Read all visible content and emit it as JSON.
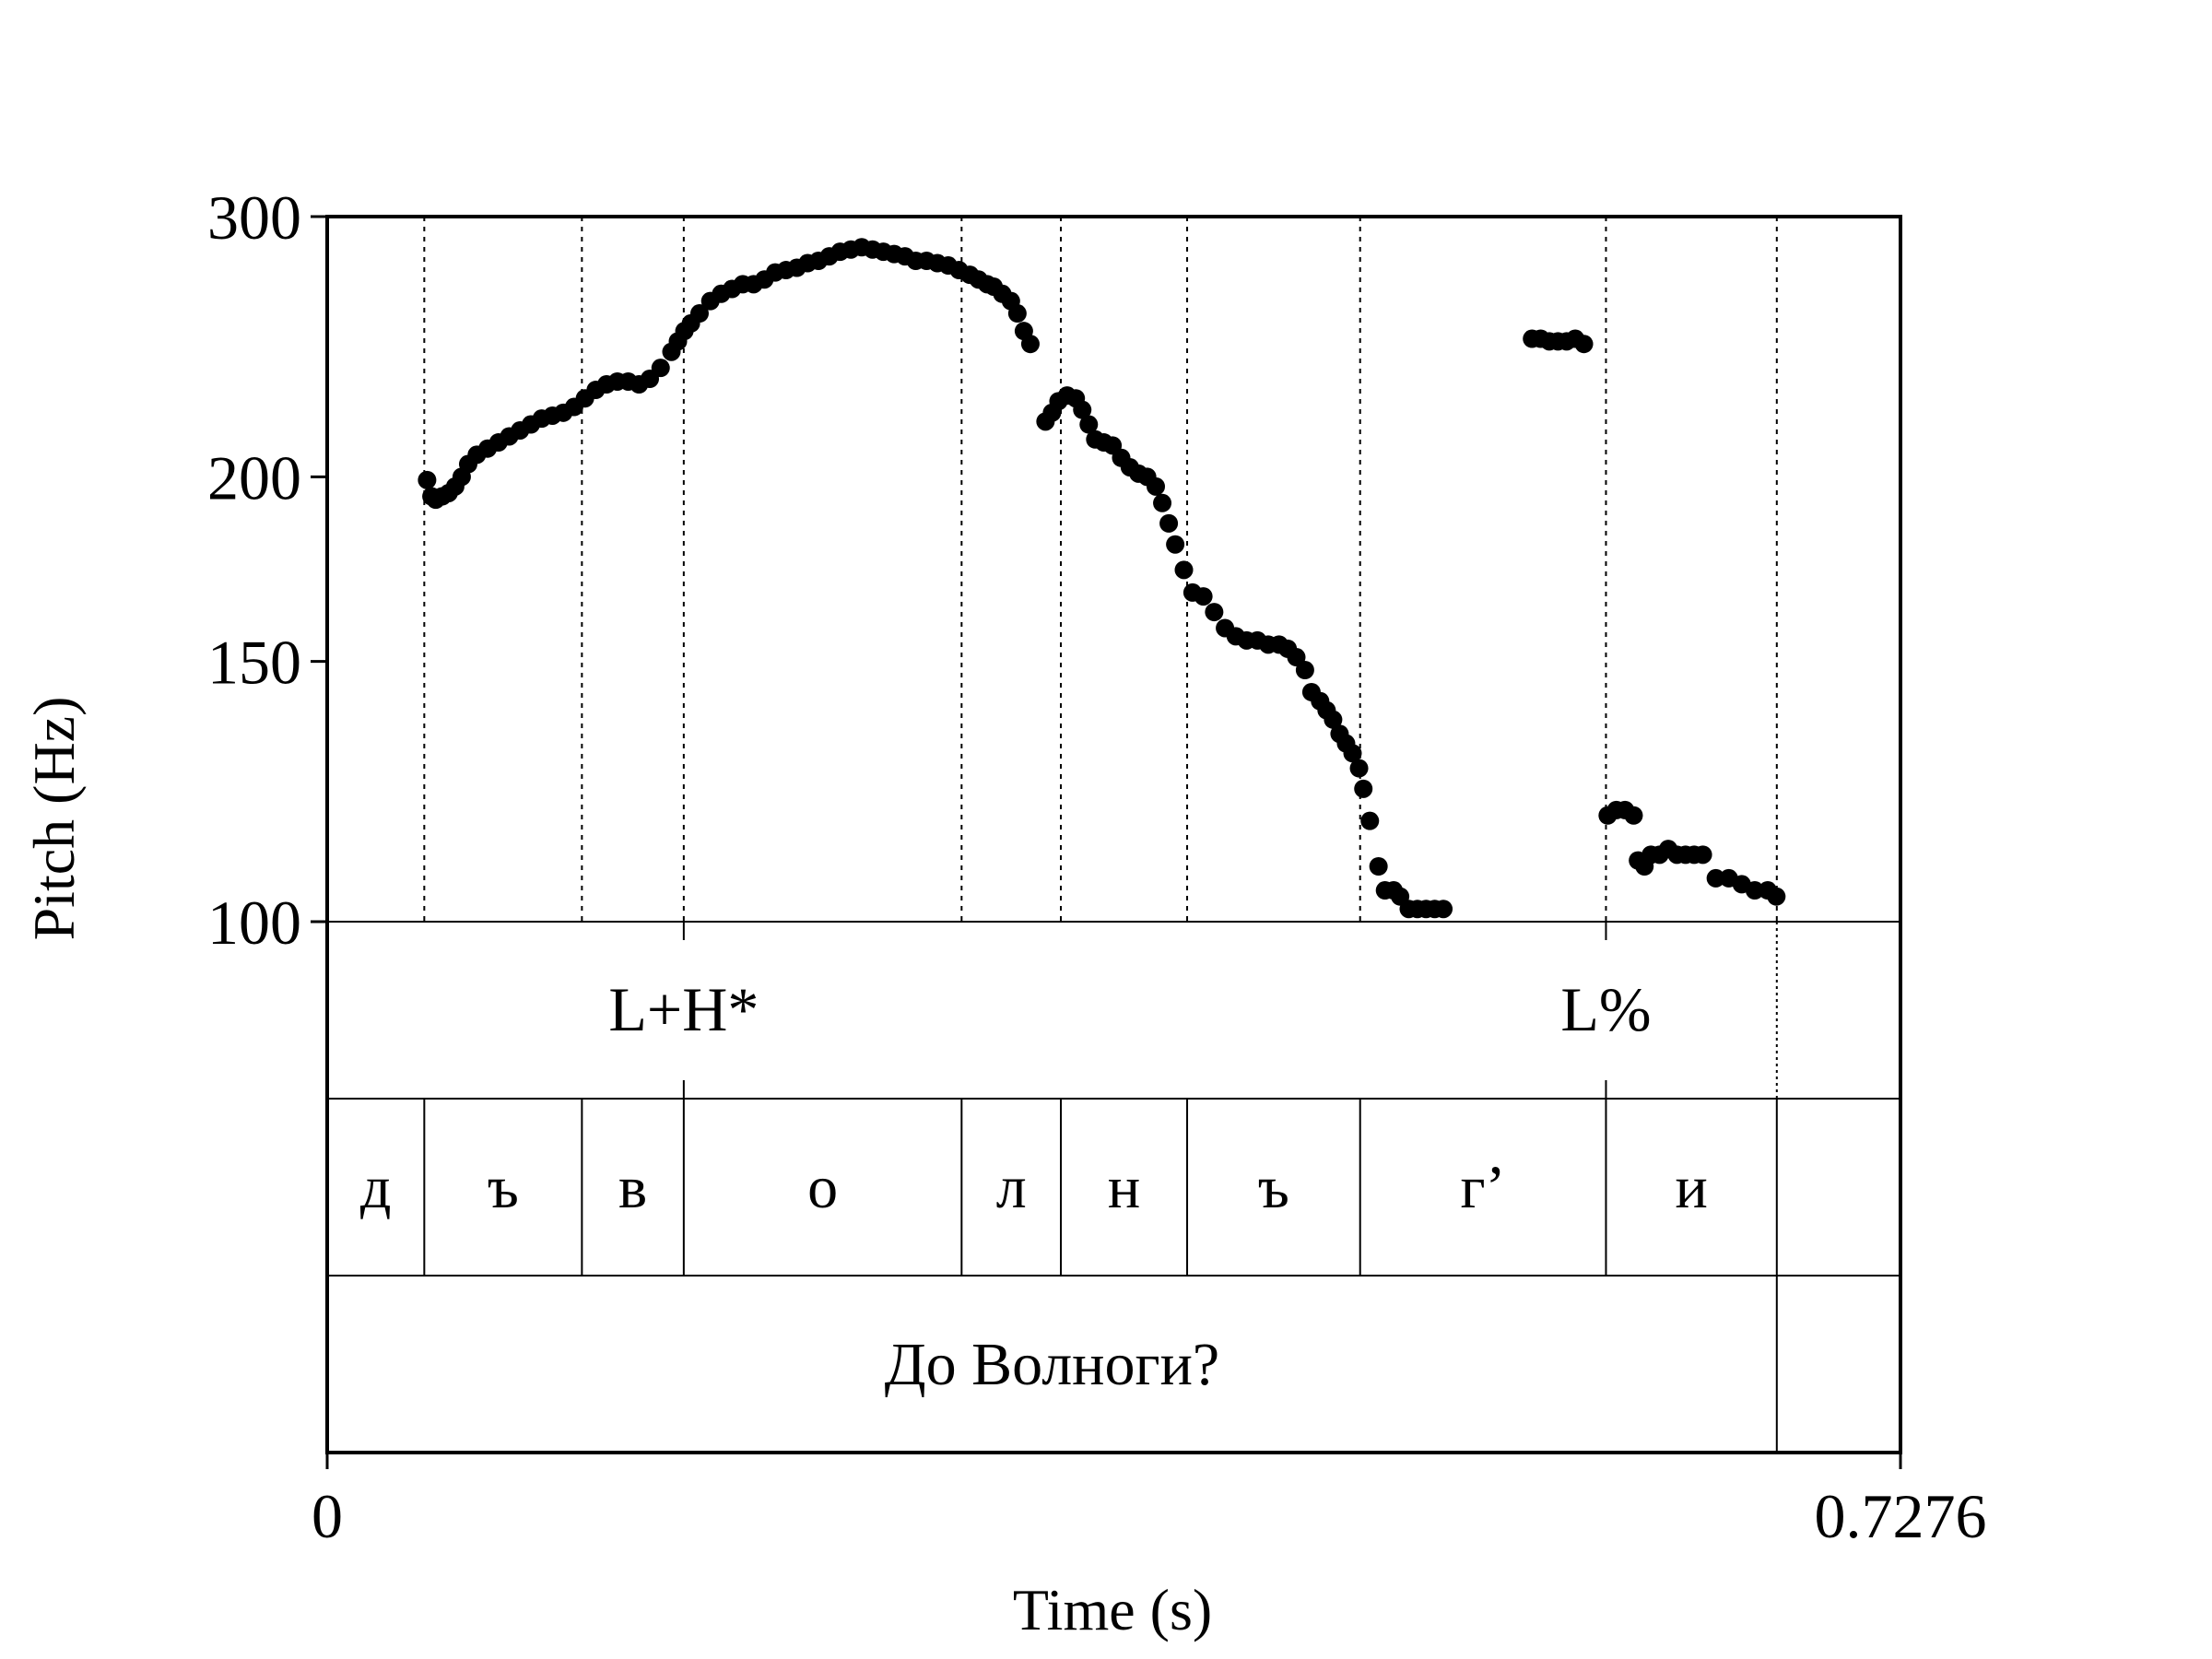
{
  "chart_data": {
    "type": "scatter",
    "title": "",
    "xlabel": "Time (s)",
    "ylabel": "Pitch (Hz)",
    "xlim": [
      0,
      0.7276
    ],
    "ylim": [
      100,
      300
    ],
    "y_scale": "log",
    "x_tick_labels": [
      "0",
      "0.7276"
    ],
    "y_ticks": [
      {
        "value": 100,
        "label": "100"
      },
      {
        "value": 150,
        "label": "150"
      },
      {
        "value": 200,
        "label": "200"
      },
      {
        "value": 300,
        "label": "300"
      }
    ],
    "segment_boundaries": [
      0.0449,
      0.1178,
      0.1649,
      0.2934,
      0.3393,
      0.3977,
      0.4777,
      0.5914,
      0.6704
    ],
    "tiers": [
      {
        "name": "tones",
        "points": [
          {
            "time": 0.1649,
            "label": "L+H*"
          },
          {
            "time": 0.5914,
            "label": "L%"
          },
          {
            "time": 0.6704,
            "label": ""
          }
        ]
      },
      {
        "name": "segments",
        "intervals": [
          {
            "start": 0.0,
            "end": 0.0449,
            "label": "д"
          },
          {
            "start": 0.0449,
            "end": 0.1178,
            "label": "ъ"
          },
          {
            "start": 0.1178,
            "end": 0.1649,
            "label": "в"
          },
          {
            "start": 0.1649,
            "end": 0.2934,
            "label": "о"
          },
          {
            "start": 0.2934,
            "end": 0.3393,
            "label": "л"
          },
          {
            "start": 0.3393,
            "end": 0.3977,
            "label": "н"
          },
          {
            "start": 0.3977,
            "end": 0.4777,
            "label": "ъ"
          },
          {
            "start": 0.4777,
            "end": 0.5914,
            "label": "г’"
          },
          {
            "start": 0.5914,
            "end": 0.6704,
            "label": "и"
          },
          {
            "start": 0.6704,
            "end": 0.7276,
            "label": ""
          }
        ]
      },
      {
        "name": "words",
        "intervals": [
          {
            "start": 0.0,
            "end": 0.6704,
            "label": "До Волноги?"
          },
          {
            "start": 0.6704,
            "end": 0.7276,
            "label": ""
          }
        ]
      }
    ],
    "series": [
      {
        "points": [
          [
            0.0462,
            199
          ],
          [
            0.0482,
            194
          ],
          [
            0.0502,
            193
          ],
          [
            0.0532,
            194
          ],
          [
            0.0562,
            195
          ],
          [
            0.0592,
            197
          ],
          [
            0.0622,
            200
          ],
          [
            0.0652,
            204
          ],
          [
            0.0692,
            207
          ],
          [
            0.0742,
            209
          ],
          [
            0.0792,
            211
          ],
          [
            0.0842,
            213
          ],
          [
            0.0892,
            215
          ],
          [
            0.0942,
            217
          ],
          [
            0.0992,
            219
          ],
          [
            0.1042,
            220
          ],
          [
            0.1092,
            221
          ],
          [
            0.1142,
            223
          ],
          [
            0.1192,
            226
          ],
          [
            0.1242,
            229
          ],
          [
            0.1292,
            231
          ],
          [
            0.1342,
            232
          ],
          [
            0.1392,
            232
          ],
          [
            0.1442,
            231
          ],
          [
            0.1492,
            233
          ],
          [
            0.1542,
            237
          ],
          [
            0.1592,
            243
          ],
          [
            0.1622,
            247
          ],
          [
            0.1652,
            251
          ],
          [
            0.1682,
            254
          ],
          [
            0.1722,
            258
          ],
          [
            0.1772,
            263
          ],
          [
            0.1822,
            266
          ],
          [
            0.1872,
            268
          ],
          [
            0.1922,
            270
          ],
          [
            0.1972,
            270
          ],
          [
            0.2022,
            272
          ],
          [
            0.2072,
            275
          ],
          [
            0.2122,
            276
          ],
          [
            0.2172,
            277
          ],
          [
            0.2222,
            279
          ],
          [
            0.2272,
            280
          ],
          [
            0.2322,
            282
          ],
          [
            0.2372,
            284
          ],
          [
            0.2422,
            285
          ],
          [
            0.2472,
            286
          ],
          [
            0.2522,
            285
          ],
          [
            0.2572,
            284
          ],
          [
            0.2622,
            283
          ],
          [
            0.2672,
            282
          ],
          [
            0.2722,
            280
          ],
          [
            0.2772,
            280
          ],
          [
            0.2822,
            279
          ],
          [
            0.2872,
            278
          ],
          [
            0.2922,
            276
          ],
          [
            0.2972,
            274
          ],
          [
            0.3012,
            272
          ],
          [
            0.3052,
            270
          ],
          [
            0.3082,
            269
          ],
          [
            0.3122,
            266
          ],
          [
            0.3162,
            263
          ],
          [
            0.3192,
            258
          ],
          [
            0.3222,
            251
          ],
          [
            0.3252,
            246
          ],
          [
            0.3322,
            218
          ],
          [
            0.3352,
            221
          ],
          [
            0.3382,
            225
          ],
          [
            0.3422,
            227
          ],
          [
            0.3462,
            226
          ],
          [
            0.3492,
            222
          ],
          [
            0.3522,
            217
          ],
          [
            0.3552,
            212
          ],
          [
            0.3592,
            211
          ],
          [
            0.3632,
            210
          ],
          [
            0.3672,
            206
          ],
          [
            0.3712,
            203
          ],
          [
            0.3752,
            201
          ],
          [
            0.3792,
            200
          ],
          [
            0.3832,
            197
          ],
          [
            0.3862,
            192
          ],
          [
            0.3892,
            186
          ],
          [
            0.3922,
            180
          ],
          [
            0.3962,
            173
          ],
          [
            0.4002,
            167
          ],
          [
            0.4052,
            166
          ],
          [
            0.4102,
            162
          ],
          [
            0.4152,
            158
          ],
          [
            0.4202,
            156
          ],
          [
            0.4252,
            155
          ],
          [
            0.4302,
            155
          ],
          [
            0.4352,
            154
          ],
          [
            0.4402,
            154
          ],
          [
            0.4442,
            153
          ],
          [
            0.4482,
            151
          ],
          [
            0.4522,
            148
          ],
          [
            0.4552,
            143
          ],
          [
            0.4592,
            141
          ],
          [
            0.4622,
            139
          ],
          [
            0.4652,
            137
          ],
          [
            0.4682,
            134
          ],
          [
            0.4712,
            132
          ],
          [
            0.4742,
            130
          ],
          [
            0.4772,
            127
          ],
          [
            0.4792,
            123
          ],
          [
            0.4822,
            117
          ],
          [
            0.4862,
            109
          ],
          [
            0.4892,
            105
          ],
          [
            0.4932,
            105
          ],
          [
            0.4962,
            104
          ],
          [
            0.5002,
            102
          ],
          [
            0.5042,
            102
          ],
          [
            0.5082,
            102
          ],
          [
            0.5122,
            102
          ],
          [
            0.5162,
            102
          ],
          [
            0.5572,
            248
          ],
          [
            0.5612,
            248
          ],
          [
            0.5652,
            247
          ],
          [
            0.5692,
            247
          ],
          [
            0.5732,
            247
          ],
          [
            0.5772,
            248
          ],
          [
            0.5812,
            246
          ],
          [
            0.5922,
            118
          ],
          [
            0.5962,
            119
          ],
          [
            0.6002,
            119
          ],
          [
            0.6042,
            118
          ],
          [
            0.6062,
            110
          ],
          [
            0.6092,
            109
          ],
          [
            0.6122,
            111
          ],
          [
            0.6162,
            111
          ],
          [
            0.6202,
            112
          ],
          [
            0.6242,
            111
          ],
          [
            0.6282,
            111
          ],
          [
            0.6322,
            111
          ],
          [
            0.6362,
            111
          ],
          [
            0.6422,
            107
          ],
          [
            0.6482,
            107
          ],
          [
            0.6542,
            106
          ],
          [
            0.6602,
            105
          ],
          [
            0.6662,
            105
          ],
          [
            0.6702,
            104
          ]
        ]
      }
    ]
  }
}
